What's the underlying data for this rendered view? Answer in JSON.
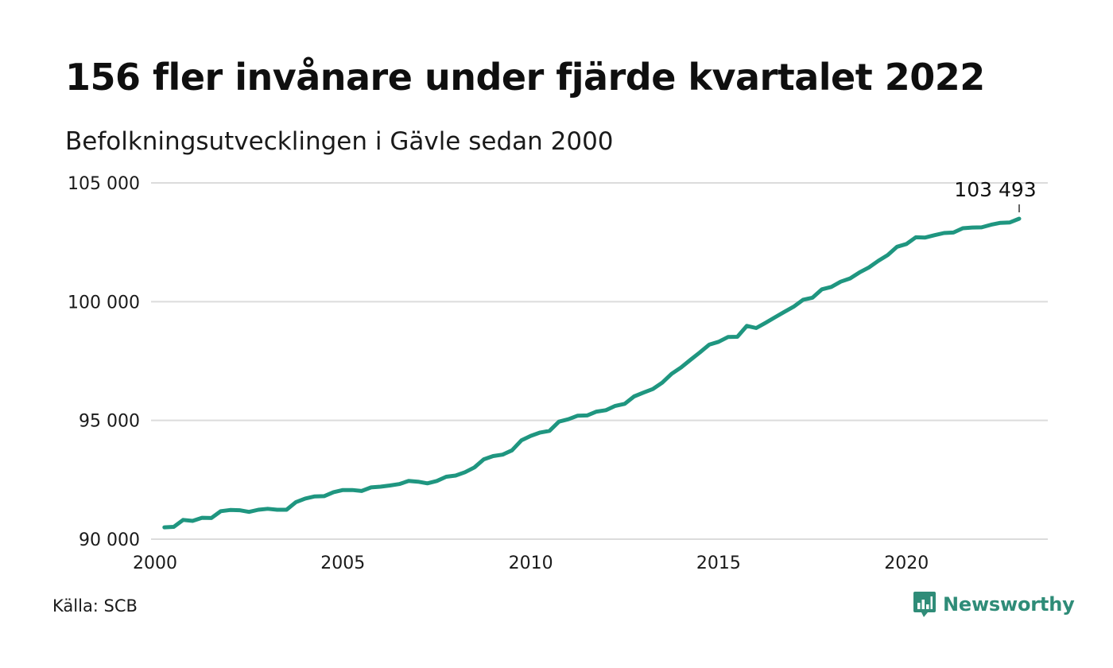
{
  "title": "156 fler invånare under fjärde kvartalet 2022",
  "subtitle": "Befolkningsutvecklingen i Gävle sedan 2000",
  "source": "Källa: SCB",
  "brand": {
    "name": "Newsworthy",
    "color": "#2f8c78",
    "logo_icon": "bar-chart-speech-bubble-icon"
  },
  "chart_data": {
    "type": "line",
    "title": "156 fler invånare under fjärde kvartalet 2022",
    "subtitle": "Befolkningsutvecklingen i Gävle sedan 2000",
    "xlabel": "",
    "ylabel": "",
    "xlim": [
      2000,
      2023.6
    ],
    "ylim": [
      90000,
      105000
    ],
    "x_ticks": [
      2000,
      2005,
      2010,
      2015,
      2020
    ],
    "y_ticks": [
      90000,
      95000,
      100000,
      105000
    ],
    "y_tick_labels": [
      "90 000",
      "95 000",
      "100 000",
      "105 000"
    ],
    "grid": "horizontal",
    "line_color": "#1f9680",
    "end_label": "103 493",
    "series": [
      {
        "values": [
          [
            2000.25,
            90500
          ],
          [
            2000.5,
            90520
          ],
          [
            2000.75,
            90810
          ],
          [
            2001.0,
            90770
          ],
          [
            2001.25,
            90900
          ],
          [
            2001.5,
            90890
          ],
          [
            2001.75,
            91180
          ],
          [
            2002.0,
            91230
          ],
          [
            2002.25,
            91220
          ],
          [
            2002.5,
            91150
          ],
          [
            2002.75,
            91240
          ],
          [
            2003.0,
            91280
          ],
          [
            2003.25,
            91240
          ],
          [
            2003.5,
            91240
          ],
          [
            2003.75,
            91560
          ],
          [
            2004.0,
            91710
          ],
          [
            2004.25,
            91800
          ],
          [
            2004.5,
            91810
          ],
          [
            2004.75,
            91980
          ],
          [
            2005.0,
            92070
          ],
          [
            2005.25,
            92070
          ],
          [
            2005.5,
            92030
          ],
          [
            2005.75,
            92180
          ],
          [
            2006.0,
            92210
          ],
          [
            2006.25,
            92260
          ],
          [
            2006.5,
            92320
          ],
          [
            2006.75,
            92450
          ],
          [
            2007.0,
            92420
          ],
          [
            2007.25,
            92350
          ],
          [
            2007.5,
            92450
          ],
          [
            2007.75,
            92630
          ],
          [
            2008.0,
            92680
          ],
          [
            2008.25,
            92820
          ],
          [
            2008.5,
            93020
          ],
          [
            2008.75,
            93360
          ],
          [
            2009.0,
            93500
          ],
          [
            2009.25,
            93560
          ],
          [
            2009.5,
            93740
          ],
          [
            2009.75,
            94160
          ],
          [
            2010.0,
            94350
          ],
          [
            2010.25,
            94490
          ],
          [
            2010.5,
            94560
          ],
          [
            2010.75,
            94950
          ],
          [
            2011.0,
            95050
          ],
          [
            2011.25,
            95200
          ],
          [
            2011.5,
            95210
          ],
          [
            2011.75,
            95370
          ],
          [
            2012.0,
            95430
          ],
          [
            2012.25,
            95610
          ],
          [
            2012.5,
            95700
          ],
          [
            2012.75,
            96010
          ],
          [
            2013.0,
            96170
          ],
          [
            2013.25,
            96320
          ],
          [
            2013.5,
            96590
          ],
          [
            2013.75,
            96960
          ],
          [
            2014.0,
            97230
          ],
          [
            2014.25,
            97550
          ],
          [
            2014.5,
            97860
          ],
          [
            2014.75,
            98190
          ],
          [
            2015.0,
            98310
          ],
          [
            2015.25,
            98510
          ],
          [
            2015.5,
            98520
          ],
          [
            2015.75,
            98980
          ],
          [
            2016.0,
            98890
          ],
          [
            2016.25,
            99110
          ],
          [
            2016.5,
            99340
          ],
          [
            2016.75,
            99570
          ],
          [
            2017.0,
            99790
          ],
          [
            2017.25,
            100080
          ],
          [
            2017.5,
            100170
          ],
          [
            2017.75,
            100520
          ],
          [
            2018.0,
            100620
          ],
          [
            2018.25,
            100840
          ],
          [
            2018.5,
            100980
          ],
          [
            2018.75,
            101230
          ],
          [
            2019.0,
            101440
          ],
          [
            2019.25,
            101720
          ],
          [
            2019.5,
            101960
          ],
          [
            2019.75,
            102310
          ],
          [
            2020.0,
            102430
          ],
          [
            2020.25,
            102710
          ],
          [
            2020.5,
            102700
          ],
          [
            2020.75,
            102800
          ],
          [
            2021.0,
            102890
          ],
          [
            2021.25,
            102910
          ],
          [
            2021.5,
            103090
          ],
          [
            2021.75,
            103120
          ],
          [
            2022.0,
            103130
          ],
          [
            2022.25,
            103240
          ],
          [
            2022.5,
            103320
          ],
          [
            2022.75,
            103337
          ],
          [
            2023.0,
            103493
          ]
        ]
      }
    ]
  }
}
